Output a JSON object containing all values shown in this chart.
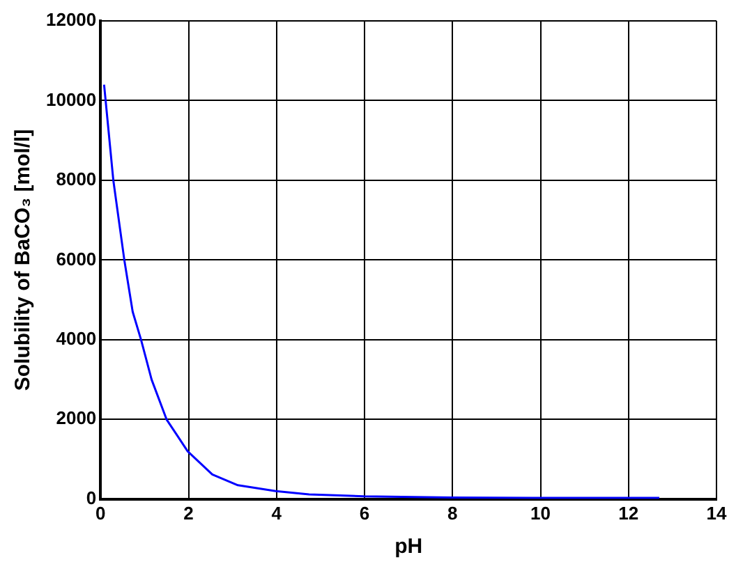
{
  "chart_data": {
    "type": "line",
    "xlabel": "pH",
    "ylabel": "Solubility of BaCO₃ [mol/l]",
    "x": [
      0.08,
      0.29,
      0.54,
      0.73,
      0.92,
      1.16,
      1.5,
      1.98,
      2.54,
      3.12,
      3.98,
      4.74,
      5.98,
      8,
      10,
      12.7
    ],
    "series": [
      {
        "color": "#0000ff",
        "values": [
          10400,
          8000,
          6000,
          4700,
          4000,
          3000,
          2000,
          1200,
          620,
          350,
          200,
          120,
          70,
          40,
          30,
          30
        ]
      }
    ],
    "xlim": [
      0,
      14
    ],
    "xticks": [
      0,
      2,
      4,
      6,
      8,
      10,
      12,
      14
    ],
    "ylim": [
      0,
      12000
    ],
    "yticks": [
      0,
      2000,
      4000,
      6000,
      8000,
      10000,
      12000
    ],
    "grid": true,
    "legend": false,
    "marker": "none",
    "line_style": "solid"
  }
}
